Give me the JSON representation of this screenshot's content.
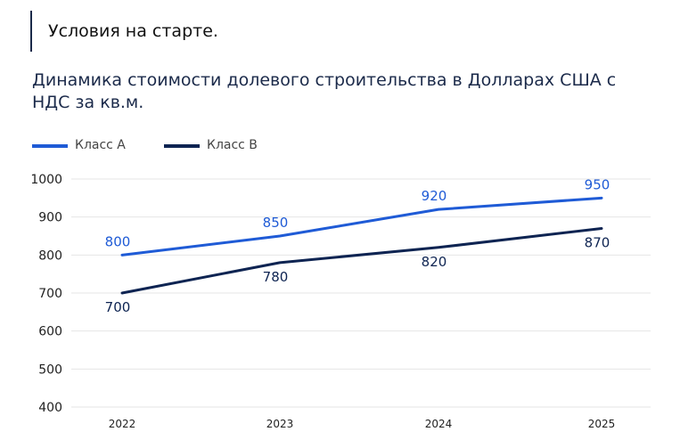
{
  "header": {
    "text": "Условия на старте."
  },
  "chart_data": {
    "type": "line",
    "title": "Динамика стоимости долевого строительства в Долларах США с НДС за кв.м.",
    "xlabel": "",
    "ylabel": "",
    "categories": [
      "2022",
      "2023",
      "2024",
      "2025"
    ],
    "ylim": [
      400,
      1000
    ],
    "yticks": [
      "1000",
      "900",
      "800",
      "700",
      "600",
      "500",
      "400"
    ],
    "grid": true,
    "legend_position": "top-left",
    "series": [
      {
        "name": "Класс А",
        "values": [
          800,
          850,
          920,
          950
        ],
        "labels": [
          "800",
          "850",
          "920",
          "950"
        ],
        "color": "#1f5bd6"
      },
      {
        "name": "Класс В",
        "values": [
          700,
          780,
          820,
          870
        ],
        "labels": [
          "700",
          "780",
          "820",
          "870"
        ],
        "color": "#0e2452"
      }
    ]
  }
}
